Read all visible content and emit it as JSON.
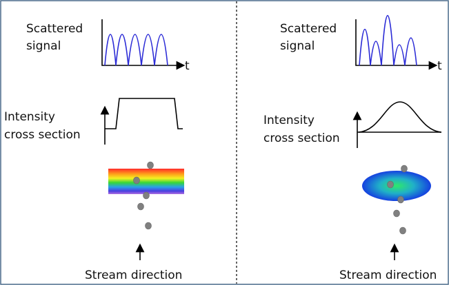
{
  "panels": [
    {
      "signal_label": [
        "Scattered",
        "signal"
      ],
      "time_label": "t",
      "intensity_label": [
        "Intensity",
        "cross section"
      ],
      "stream_label": "Stream direction"
    },
    {
      "signal_label": [
        "Scattered",
        "signal"
      ],
      "time_label": "t",
      "intensity_label": [
        "Intensity",
        "cross section"
      ],
      "stream_label": "Stream direction"
    }
  ]
}
